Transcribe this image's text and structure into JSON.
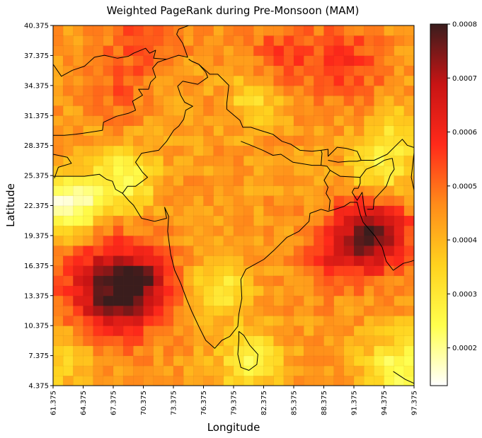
{
  "chart_data": {
    "type": "heatmap",
    "title": "Weighted PageRank during Pre-Monsoon (MAM)",
    "xlabel": "Longitude",
    "ylabel": "Latitude",
    "xlim": [
      61.375,
      97.375
    ],
    "ylim": [
      4.375,
      40.375
    ],
    "cell_size_deg": 1.0,
    "x_ticks": [
      "61.375",
      "64.375",
      "67.375",
      "70.375",
      "73.375",
      "76.375",
      "79.375",
      "82.375",
      "85.375",
      "88.375",
      "91.375",
      "94.375",
      "97.375"
    ],
    "y_ticks": [
      "4.375",
      "7.375",
      "10.375",
      "13.375",
      "16.375",
      "19.375",
      "22.375",
      "25.375",
      "28.375",
      "31.375",
      "34.375",
      "37.375",
      "40.375"
    ],
    "colorbar": {
      "colormap": "hot_r",
      "vmin": 0.00013,
      "vmax": 0.0008,
      "ticks": [
        "0.0002",
        "0.0003",
        "0.0004",
        "0.0005",
        "0.0006",
        "0.0007",
        "0.0008"
      ],
      "stops": [
        "#ffffff",
        "#ffff4d",
        "#ffd21e",
        "#ff8c1a",
        "#ff2a1a",
        "#c81414",
        "#3a1d1d"
      ]
    },
    "base_value": 0.00044,
    "features": [
      {
        "lon": 67.5,
        "lat": 14.0,
        "amplitude": 0.00036,
        "radius_deg": 4.5
      },
      {
        "lon": 70.5,
        "lat": 15.0,
        "amplitude": 0.00012,
        "radius_deg": 2.5
      },
      {
        "lon": 93.0,
        "lat": 19.5,
        "amplitude": 0.00032,
        "radius_deg": 3.8
      },
      {
        "lon": 89.0,
        "lat": 17.0,
        "amplitude": 0.0001,
        "radius_deg": 3.0
      },
      {
        "lon": 90.5,
        "lat": 37.0,
        "amplitude": 0.00012,
        "radius_deg": 4.0
      },
      {
        "lon": 84.0,
        "lat": 37.5,
        "amplitude": 0.0001,
        "radius_deg": 3.0
      },
      {
        "lon": 70.0,
        "lat": 39.5,
        "amplitude": 0.0001,
        "radius_deg": 3.5
      },
      {
        "lon": 68.0,
        "lat": 34.0,
        "amplitude": 8e-05,
        "radius_deg": 3.0
      },
      {
        "lon": 63.0,
        "lat": 22.5,
        "amplitude": -0.0003,
        "radius_deg": 3.0
      },
      {
        "lon": 68.5,
        "lat": 25.0,
        "amplitude": -0.0002,
        "radius_deg": 3.0
      },
      {
        "lon": 78.0,
        "lat": 14.0,
        "amplitude": -0.00016,
        "radius_deg": 2.6
      },
      {
        "lon": 81.0,
        "lat": 7.0,
        "amplitude": -0.00018,
        "radius_deg": 3.0
      },
      {
        "lon": 96.0,
        "lat": 6.0,
        "amplitude": -0.0002,
        "radius_deg": 3.5
      },
      {
        "lon": 94.0,
        "lat": 26.0,
        "amplitude": -0.00018,
        "radius_deg": 3.0
      },
      {
        "lon": 81.5,
        "lat": 33.0,
        "amplitude": -0.00012,
        "radius_deg": 2.5
      },
      {
        "lon": 96.0,
        "lat": 30.0,
        "amplitude": -0.0001,
        "radius_deg": 2.5
      },
      {
        "lon": 62.5,
        "lat": 7.5,
        "amplitude": -0.00012,
        "radius_deg": 3.0
      }
    ]
  },
  "map_outline": {
    "line_color": "#000000",
    "coastlines": [
      [
        [
          61.375,
          25.3
        ],
        [
          63.0,
          25.3
        ],
        [
          64.5,
          25.3
        ],
        [
          66.0,
          25.5
        ],
        [
          66.7,
          25.0
        ],
        [
          67.3,
          24.8
        ],
        [
          67.6,
          24.0
        ],
        [
          68.3,
          23.6
        ],
        [
          68.9,
          22.9
        ],
        [
          69.4,
          22.4
        ],
        [
          70.2,
          21.1
        ],
        [
          71.5,
          20.8
        ],
        [
          72.7,
          21.1
        ],
        [
          72.5,
          22.2
        ],
        [
          72.9,
          21.3
        ],
        [
          72.8,
          19.8
        ],
        [
          73.1,
          17.5
        ],
        [
          73.5,
          15.9
        ],
        [
          74.1,
          14.6
        ],
        [
          74.7,
          13.0
        ],
        [
          75.2,
          11.8
        ],
        [
          75.9,
          10.3
        ],
        [
          76.6,
          8.9
        ],
        [
          77.5,
          8.1
        ],
        [
          78.2,
          8.9
        ],
        [
          79.0,
          9.3
        ],
        [
          79.8,
          10.3
        ],
        [
          79.9,
          11.5
        ],
        [
          80.2,
          13.1
        ],
        [
          80.1,
          15.0
        ],
        [
          80.6,
          16.0
        ],
        [
          81.5,
          16.5
        ],
        [
          82.4,
          17.0
        ],
        [
          83.4,
          17.9
        ],
        [
          84.7,
          19.2
        ],
        [
          85.9,
          19.8
        ],
        [
          86.9,
          20.8
        ],
        [
          87.0,
          21.6
        ],
        [
          88.1,
          22.0
        ],
        [
          88.8,
          21.8
        ],
        [
          89.5,
          22.0
        ],
        [
          90.4,
          22.3
        ],
        [
          91.0,
          22.7
        ],
        [
          91.7,
          22.7
        ],
        [
          92.0,
          21.5
        ],
        [
          92.3,
          20.7
        ],
        [
          92.9,
          20.0
        ],
        [
          93.5,
          19.3
        ],
        [
          94.2,
          18.2
        ],
        [
          94.6,
          16.8
        ],
        [
          95.3,
          15.9
        ],
        [
          96.3,
          16.6
        ],
        [
          97.1,
          16.8
        ],
        [
          97.375,
          16.9
        ]
      ],
      [
        [
          79.9,
          9.8
        ],
        [
          80.4,
          9.4
        ],
        [
          81.0,
          8.4
        ],
        [
          81.8,
          7.5
        ],
        [
          81.7,
          6.5
        ],
        [
          80.9,
          5.9
        ],
        [
          80.1,
          6.2
        ],
        [
          79.8,
          7.5
        ],
        [
          79.9,
          8.9
        ],
        [
          79.9,
          9.8
        ]
      ],
      [
        [
          95.3,
          5.8
        ],
        [
          96.5,
          5.0
        ],
        [
          97.375,
          4.6
        ]
      ]
    ],
    "borders": [
      [
        [
          61.375,
          36.5
        ],
        [
          62.2,
          35.3
        ],
        [
          63.3,
          35.9
        ],
        [
          64.5,
          36.3
        ],
        [
          65.5,
          37.2
        ],
        [
          66.5,
          37.4
        ],
        [
          67.8,
          37.1
        ],
        [
          68.9,
          37.3
        ],
        [
          69.4,
          37.6
        ],
        [
          70.6,
          38.1
        ],
        [
          71.0,
          37.6
        ],
        [
          71.6,
          37.9
        ],
        [
          71.4,
          37.1
        ],
        [
          72.7,
          37.0
        ],
        [
          73.9,
          37.4
        ],
        [
          74.8,
          37.2
        ],
        [
          74.3,
          38.6
        ],
        [
          73.7,
          39.5
        ],
        [
          73.9,
          40.0
        ],
        [
          74.9,
          40.375
        ]
      ],
      [
        [
          74.9,
          37.0
        ],
        [
          75.2,
          36.8
        ],
        [
          75.9,
          36.5
        ],
        [
          77.0,
          35.5
        ],
        [
          77.8,
          35.5
        ],
        [
          78.9,
          34.4
        ],
        [
          78.7,
          32.6
        ],
        [
          78.7,
          32.0
        ],
        [
          79.3,
          31.5
        ],
        [
          80.0,
          30.9
        ],
        [
          80.3,
          30.2
        ],
        [
          81.1,
          30.2
        ],
        [
          82.0,
          29.9
        ],
        [
          83.3,
          29.5
        ],
        [
          84.2,
          28.8
        ],
        [
          85.1,
          28.5
        ],
        [
          86.0,
          27.9
        ],
        [
          87.2,
          27.8
        ],
        [
          88.1,
          27.9
        ],
        [
          88.8,
          28.0
        ],
        [
          88.8,
          27.3
        ],
        [
          89.7,
          28.2
        ],
        [
          90.6,
          28.1
        ],
        [
          91.7,
          27.8
        ],
        [
          92.1,
          26.9
        ],
        [
          93.4,
          26.9
        ],
        [
          94.7,
          27.5
        ],
        [
          95.5,
          28.3
        ],
        [
          96.2,
          29.0
        ],
        [
          96.7,
          28.4
        ],
        [
          97.3,
          28.2
        ],
        [
          97.375,
          28.2
        ]
      ],
      [
        [
          80.1,
          28.8
        ],
        [
          81.1,
          28.4
        ],
        [
          82.3,
          27.9
        ],
        [
          83.3,
          27.4
        ],
        [
          84.1,
          27.5
        ],
        [
          85.3,
          26.7
        ],
        [
          86.6,
          26.5
        ],
        [
          87.2,
          26.4
        ],
        [
          88.1,
          26.4
        ],
        [
          88.2,
          27.6
        ],
        [
          88.1,
          27.9
        ]
      ],
      [
        [
          88.8,
          26.9
        ],
        [
          89.8,
          26.7
        ],
        [
          90.9,
          26.8
        ],
        [
          91.7,
          26.8
        ],
        [
          92.1,
          26.9
        ]
      ],
      [
        [
          88.1,
          26.4
        ],
        [
          88.7,
          26.3
        ],
        [
          89.0,
          25.9
        ],
        [
          88.4,
          24.9
        ],
        [
          88.8,
          24.2
        ],
        [
          88.6,
          23.6
        ],
        [
          89.0,
          22.9
        ],
        [
          88.9,
          21.9
        ]
      ],
      [
        [
          89.0,
          25.9
        ],
        [
          90.0,
          25.3
        ],
        [
          92.0,
          25.2
        ],
        [
          92.0,
          24.6
        ],
        [
          91.8,
          24.1
        ],
        [
          91.4,
          24.1
        ],
        [
          91.2,
          23.7
        ],
        [
          91.7,
          22.9
        ],
        [
          92.2,
          23.7
        ],
        [
          92.4,
          22.1
        ],
        [
          92.6,
          21.3
        ]
      ],
      [
        [
          92.0,
          25.2
        ],
        [
          92.6,
          26.0
        ],
        [
          93.6,
          26.4
        ],
        [
          94.4,
          26.9
        ],
        [
          95.2,
          27.1
        ],
        [
          95.4,
          26.0
        ],
        [
          95.0,
          25.4
        ],
        [
          94.6,
          24.3
        ],
        [
          93.4,
          23.0
        ],
        [
          93.3,
          22.0
        ],
        [
          92.7,
          22.0
        ]
      ],
      [
        [
          97.375,
          23.9
        ],
        [
          97.1,
          25.2
        ],
        [
          97.4,
          27.9
        ]
      ],
      [
        [
          68.3,
          23.6
        ],
        [
          68.8,
          24.3
        ],
        [
          69.6,
          24.3
        ],
        [
          70.8,
          25.2
        ],
        [
          70.3,
          25.7
        ],
        [
          69.6,
          26.7
        ],
        [
          70.2,
          27.6
        ],
        [
          71.9,
          27.9
        ],
        [
          72.7,
          28.8
        ],
        [
          73.4,
          29.9
        ],
        [
          73.9,
          30.3
        ],
        [
          74.4,
          31.0
        ],
        [
          74.6,
          31.9
        ],
        [
          75.3,
          32.3
        ],
        [
          74.5,
          32.7
        ],
        [
          74.1,
          33.4
        ],
        [
          73.8,
          34.3
        ],
        [
          74.3,
          34.8
        ],
        [
          75.8,
          34.5
        ],
        [
          76.8,
          35.2
        ],
        [
          76.6,
          35.7
        ],
        [
          75.9,
          36.5
        ],
        [
          75.2,
          36.8
        ],
        [
          74.9,
          37.0
        ]
      ],
      [
        [
          61.375,
          29.4
        ],
        [
          62.5,
          29.4
        ],
        [
          63.6,
          29.5
        ],
        [
          64.4,
          29.6
        ],
        [
          66.3,
          29.9
        ],
        [
          66.4,
          30.7
        ],
        [
          67.7,
          31.3
        ],
        [
          68.9,
          31.6
        ],
        [
          69.6,
          31.9
        ],
        [
          69.3,
          32.8
        ],
        [
          70.3,
          33.4
        ],
        [
          69.9,
          34.0
        ],
        [
          70.9,
          34.0
        ],
        [
          71.1,
          34.7
        ],
        [
          71.6,
          35.2
        ],
        [
          71.3,
          36.1
        ],
        [
          71.8,
          36.7
        ],
        [
          72.7,
          37.0
        ]
      ],
      [
        [
          61.375,
          27.5
        ],
        [
          62.8,
          27.2
        ],
        [
          63.2,
          26.6
        ],
        [
          61.9,
          26.2
        ],
        [
          61.5,
          25.1
        ]
      ]
    ]
  }
}
